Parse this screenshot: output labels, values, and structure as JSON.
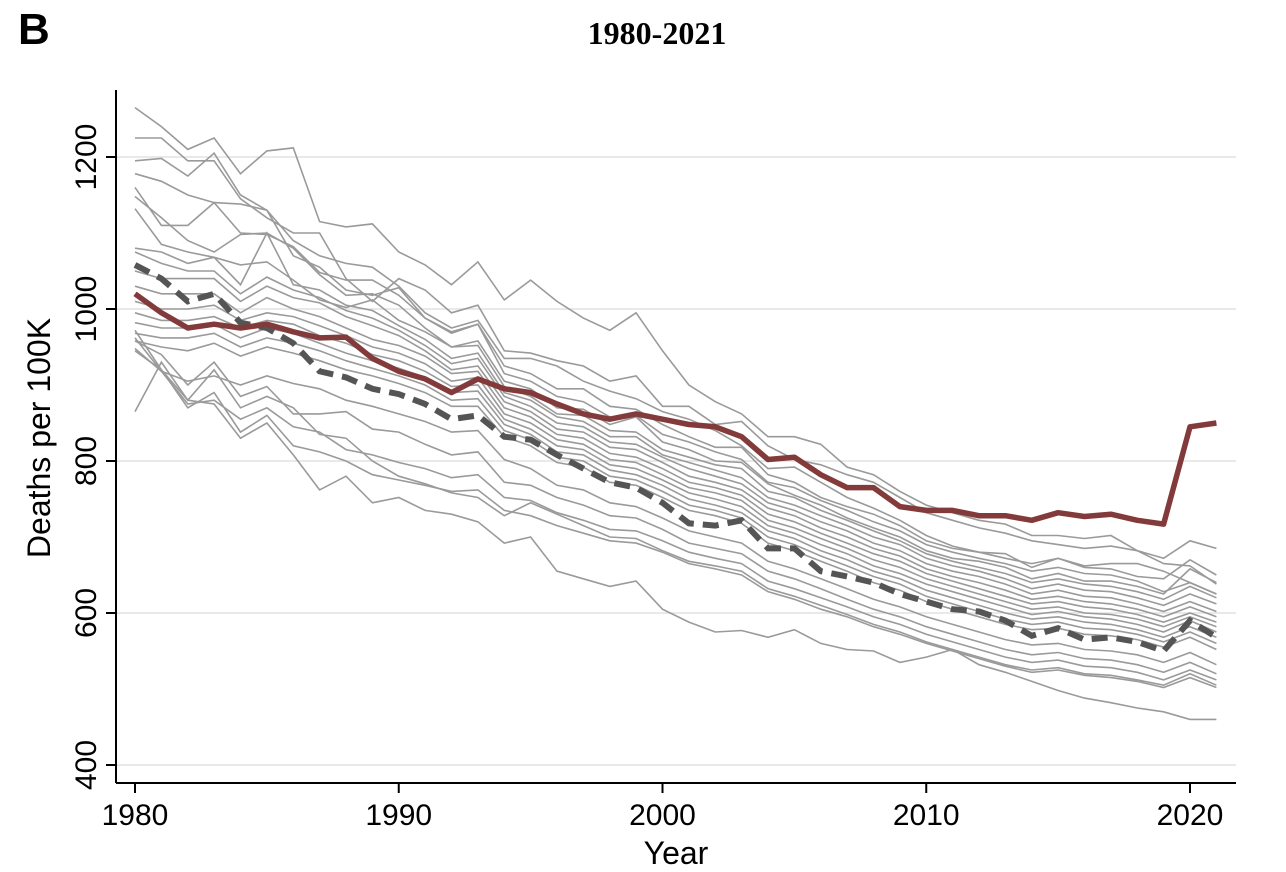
{
  "panel_label": "B",
  "chart_data": {
    "type": "line",
    "title": "1980-2021",
    "xlabel": "Year",
    "ylabel": "Deaths per 100K",
    "xlim": [
      1980,
      2021
    ],
    "ylim": [
      400,
      1280
    ],
    "xticks": [
      1980,
      1990,
      2000,
      2010,
      2020
    ],
    "yticks": [
      400,
      600,
      800,
      1000,
      1200
    ],
    "grid": "horizontal",
    "legend": "none",
    "colors": {
      "highlight": "#833a3b",
      "dashed": "#555555",
      "other": "#9a9a9a",
      "grid": "#e2e2e2"
    },
    "x": [
      1980,
      1981,
      1982,
      1983,
      1984,
      1985,
      1986,
      1987,
      1988,
      1989,
      1990,
      1991,
      1992,
      1993,
      1994,
      1995,
      1996,
      1997,
      1998,
      1999,
      2000,
      2001,
      2002,
      2003,
      2004,
      2005,
      2006,
      2007,
      2008,
      2009,
      2010,
      2011,
      2012,
      2013,
      2014,
      2015,
      2016,
      2017,
      2018,
      2019,
      2020,
      2021
    ],
    "highlight_series": {
      "style": "solid",
      "values": [
        1020,
        995,
        975,
        980,
        975,
        980,
        970,
        962,
        963,
        935,
        918,
        908,
        890,
        908,
        895,
        890,
        875,
        862,
        855,
        862,
        855,
        848,
        845,
        832,
        802,
        805,
        782,
        765,
        765,
        740,
        735,
        735,
        728,
        728,
        722,
        732,
        727,
        730,
        722,
        717,
        845,
        850
      ]
    },
    "dashed_series": {
      "style": "dashed",
      "values": [
        1058,
        1040,
        1010,
        1020,
        982,
        975,
        955,
        918,
        910,
        895,
        888,
        875,
        855,
        860,
        832,
        828,
        808,
        790,
        772,
        765,
        745,
        718,
        715,
        722,
        685,
        685,
        655,
        648,
        640,
        625,
        615,
        605,
        602,
        590,
        570,
        580,
        565,
        568,
        562,
        550,
        590,
        568
      ]
    },
    "other_series": [
      {
        "values": [
          1265,
          1240,
          1210,
          1225,
          1178,
          1208,
          1212,
          1115,
          1108,
          1112,
          1075,
          1058,
          1032,
          1062,
          1012,
          1038,
          1010,
          988,
          972,
          995,
          945,
          900,
          878,
          862,
          832,
          832,
          822,
          792,
          782,
          760,
          742,
          732,
          722,
          717,
          702,
          702,
          698,
          702,
          682,
          665,
          662,
          638
        ]
      },
      {
        "values": [
          1225,
          1225,
          1195,
          1195,
          1145,
          1120,
          1100,
          1100,
          1040,
          1010,
          1040,
          1025,
          995,
          1005,
          945,
          942,
          932,
          925,
          905,
          912,
          872,
          872,
          848,
          852,
          820,
          802,
          795,
          782,
          772,
          752,
          732,
          722,
          712,
          705,
          695,
          690,
          685,
          688,
          682,
          672,
          695,
          685
        ]
      },
      {
        "values": [
          1195,
          1198,
          1175,
          1205,
          1150,
          1130,
          1090,
          1070,
          1060,
          1055,
          1030,
          995,
          975,
          985,
          935,
          935,
          925,
          905,
          892,
          882,
          865,
          855,
          840,
          820,
          790,
          792,
          772,
          752,
          738,
          722,
          702,
          688,
          680,
          672,
          665,
          672,
          662,
          665,
          665,
          655,
          640,
          625
        ]
      },
      {
        "values": [
          1178,
          1168,
          1150,
          1140,
          1138,
          1130,
          1070,
          1055,
          1025,
          1018,
          1028,
          988,
          970,
          980,
          925,
          915,
          895,
          895,
          872,
          868,
          848,
          832,
          818,
          818,
          782,
          772,
          752,
          740,
          730,
          715,
          695,
          685,
          680,
          678,
          660,
          672,
          660,
          658,
          648,
          645,
          670,
          650
        ]
      },
      {
        "values": [
          1160,
          1110,
          1110,
          1140,
          1100,
          1098,
          1082,
          1048,
          1038,
          1038,
          1018,
          988,
          968,
          980,
          915,
          905,
          885,
          878,
          858,
          860,
          835,
          825,
          812,
          802,
          772,
          765,
          748,
          735,
          720,
          708,
          690,
          680,
          672,
          665,
          655,
          660,
          652,
          650,
          642,
          628,
          640,
          625
        ]
      },
      {
        "values": [
          1148,
          1120,
          1090,
          1075,
          1098,
          1100,
          1080,
          1045,
          1018,
          1020,
          1005,
          975,
          950,
          958,
          905,
          895,
          870,
          868,
          848,
          858,
          825,
          815,
          800,
          798,
          770,
          755,
          742,
          725,
          712,
          700,
          682,
          672,
          668,
          660,
          645,
          652,
          642,
          642,
          635,
          625,
          658,
          640
        ]
      },
      {
        "values": [
          1132,
          1085,
          1075,
          1068,
          1058,
          1062,
          1038,
          1012,
          1002,
          1012,
          985,
          970,
          950,
          952,
          898,
          885,
          862,
          860,
          840,
          838,
          815,
          805,
          795,
          790,
          760,
          752,
          735,
          722,
          708,
          695,
          678,
          668,
          660,
          652,
          640,
          645,
          638,
          635,
          628,
          618,
          635,
          620
        ]
      },
      {
        "values": [
          1080,
          1075,
          1060,
          1068,
          1032,
          1100,
          1032,
          1025,
          1005,
          998,
          978,
          960,
          935,
          942,
          890,
          880,
          858,
          852,
          832,
          832,
          808,
          798,
          788,
          778,
          752,
          742,
          728,
          715,
          700,
          690,
          672,
          662,
          655,
          645,
          632,
          638,
          630,
          628,
          620,
          610,
          625,
          612
        ]
      },
      {
        "values": [
          1075,
          1060,
          1050,
          1050,
          1020,
          1042,
          1025,
          1015,
          998,
          988,
          972,
          952,
          928,
          935,
          885,
          872,
          850,
          845,
          825,
          822,
          805,
          790,
          780,
          770,
          745,
          735,
          720,
          708,
          692,
          682,
          665,
          655,
          648,
          638,
          625,
          630,
          622,
          620,
          612,
          602,
          615,
          602
        ]
      },
      {
        "values": [
          1050,
          1040,
          1040,
          1040,
          1010,
          1030,
          1015,
          1008,
          990,
          978,
          965,
          945,
          920,
          925,
          878,
          865,
          842,
          838,
          818,
          815,
          798,
          780,
          772,
          762,
          738,
          728,
          712,
          700,
          685,
          675,
          658,
          648,
          640,
          630,
          618,
          622,
          615,
          612,
          605,
          595,
          608,
          595
        ]
      },
      {
        "values": [
          1030,
          1020,
          1020,
          1020,
          995,
          1015,
          1000,
          990,
          975,
          960,
          952,
          938,
          915,
          918,
          870,
          858,
          835,
          830,
          810,
          805,
          790,
          772,
          765,
          755,
          730,
          720,
          705,
          692,
          678,
          668,
          652,
          642,
          632,
          622,
          612,
          615,
          608,
          605,
          598,
          588,
          600,
          588
        ]
      },
      {
        "values": [
          1010,
          1000,
          1000,
          1005,
          985,
          995,
          990,
          978,
          965,
          950,
          942,
          928,
          905,
          910,
          862,
          850,
          828,
          822,
          802,
          798,
          782,
          765,
          758,
          748,
          722,
          712,
          698,
          685,
          670,
          660,
          645,
          635,
          625,
          615,
          605,
          608,
          600,
          598,
          592,
          582,
          595,
          582
        ]
      },
      {
        "values": [
          995,
          985,
          985,
          990,
          975,
          985,
          980,
          965,
          955,
          940,
          932,
          918,
          898,
          900,
          855,
          842,
          820,
          815,
          795,
          790,
          775,
          758,
          750,
          740,
          715,
          705,
          690,
          678,
          662,
          652,
          638,
          628,
          618,
          608,
          598,
          602,
          595,
          592,
          585,
          575,
          590,
          575
        ]
      },
      {
        "values": [
          982,
          975,
          975,
          980,
          962,
          975,
          968,
          955,
          942,
          932,
          922,
          910,
          890,
          892,
          848,
          835,
          812,
          808,
          788,
          782,
          768,
          750,
          742,
          732,
          708,
          698,
          682,
          670,
          655,
          645,
          630,
          620,
          610,
          600,
          592,
          595,
          588,
          585,
          578,
          568,
          582,
          568
        ]
      },
      {
        "values": [
          968,
          962,
          962,
          968,
          950,
          962,
          955,
          945,
          932,
          922,
          912,
          900,
          880,
          882,
          840,
          828,
          805,
          800,
          780,
          775,
          760,
          742,
          735,
          725,
          700,
          690,
          675,
          662,
          648,
          638,
          622,
          612,
          602,
          592,
          585,
          588,
          580,
          578,
          572,
          562,
          575,
          560
        ]
      },
      {
        "values": [
          958,
          950,
          945,
          955,
          938,
          950,
          942,
          932,
          920,
          912,
          902,
          890,
          872,
          872,
          832,
          820,
          798,
          792,
          772,
          768,
          752,
          735,
          728,
          718,
          692,
          682,
          668,
          655,
          640,
          630,
          615,
          605,
          595,
          585,
          578,
          580,
          572,
          570,
          565,
          555,
          568,
          552
        ]
      },
      {
        "values": [
          948,
          918,
          905,
          912,
          900,
          912,
          902,
          895,
          880,
          872,
          862,
          852,
          838,
          840,
          802,
          790,
          768,
          762,
          745,
          740,
          725,
          708,
          700,
          692,
          668,
          658,
          645,
          632,
          618,
          608,
          595,
          585,
          575,
          565,
          558,
          560,
          552,
          550,
          545,
          535,
          548,
          532
        ]
      },
      {
        "values": [
          958,
          940,
          900,
          930,
          885,
          898,
          862,
          862,
          865,
          842,
          838,
          822,
          808,
          812,
          772,
          768,
          752,
          742,
          728,
          725,
          710,
          692,
          685,
          678,
          655,
          645,
          632,
          618,
          605,
          595,
          582,
          572,
          562,
          552,
          545,
          548,
          540,
          538,
          532,
          522,
          535,
          520
        ]
      },
      {
        "values": [
          962,
          918,
          875,
          880,
          855,
          870,
          845,
          838,
          815,
          808,
          798,
          790,
          778,
          782,
          752,
          748,
          732,
          722,
          710,
          708,
          695,
          680,
          672,
          665,
          642,
          632,
          620,
          608,
          595,
          585,
          572,
          562,
          552,
          542,
          535,
          538,
          530,
          528,
          522,
          512,
          525,
          512
        ]
      },
      {
        "values": [
          972,
          920,
          870,
          890,
          838,
          860,
          820,
          812,
          800,
          782,
          775,
          768,
          760,
          762,
          735,
          728,
          715,
          705,
          695,
          692,
          680,
          665,
          658,
          650,
          628,
          618,
          605,
          595,
          582,
          572,
          560,
          550,
          540,
          530,
          522,
          525,
          518,
          515,
          510,
          502,
          515,
          502
        ]
      },
      {
        "values": [
          945,
          920,
          880,
          875,
          830,
          850,
          808,
          762,
          780,
          745,
          752,
          735,
          730,
          720,
          692,
          700,
          655,
          645,
          635,
          642,
          605,
          588,
          575,
          577,
          568,
          578,
          560,
          552,
          550,
          535,
          542,
          552,
          532,
          522,
          510,
          498,
          488,
          482,
          475,
          470,
          460,
          460
        ]
      },
      {
        "values": [
          865,
          930,
          880,
          920,
          870,
          885,
          870,
          835,
          830,
          800,
          780,
          770,
          758,
          752,
          728,
          745,
          730,
          715,
          700,
          698,
          682,
          668,
          662,
          655,
          632,
          622,
          610,
          598,
          585,
          575,
          562,
          552,
          542,
          532,
          525,
          528,
          520,
          518,
          512,
          505,
          520,
          505
        ]
      }
    ]
  }
}
